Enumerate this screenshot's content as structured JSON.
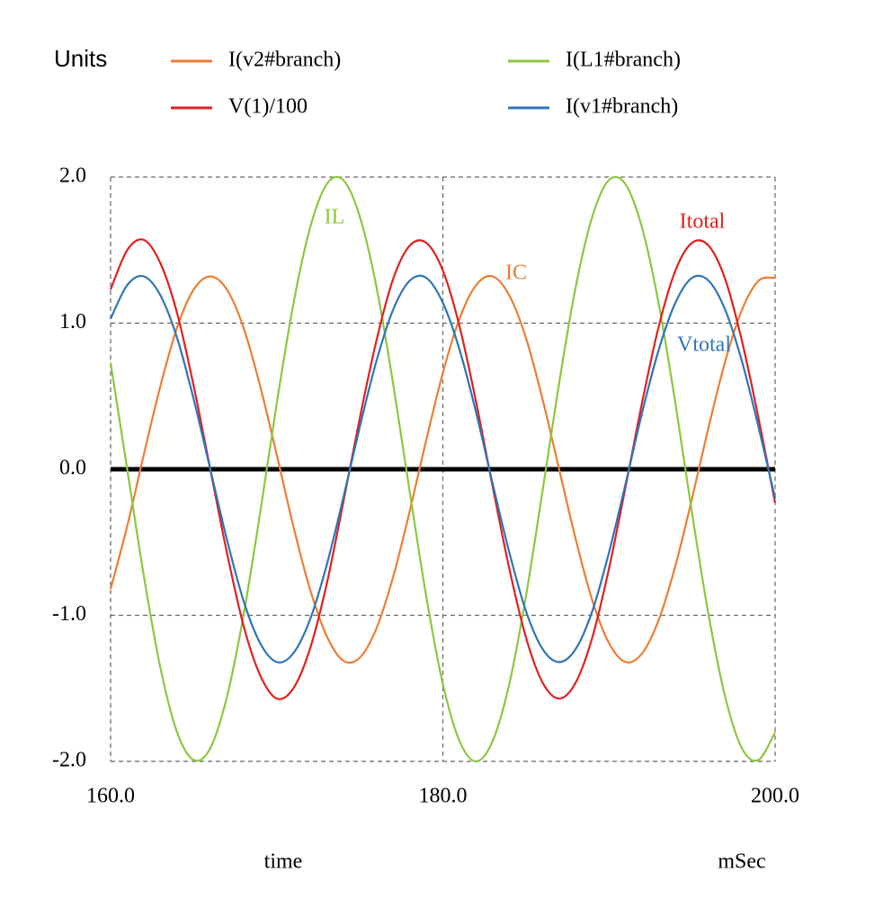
{
  "chart_data": {
    "type": "line",
    "legend_title": "Units",
    "x_label": "time",
    "x_unit": "mSec",
    "x": [
      160,
      161,
      162,
      163,
      164,
      165,
      166,
      167,
      168,
      169,
      170,
      171,
      172,
      173,
      174,
      175,
      176,
      177,
      178,
      179,
      180,
      181,
      182,
      183,
      184,
      185,
      186,
      187,
      188,
      189,
      190,
      191,
      192,
      193,
      194,
      195,
      196,
      197,
      198,
      199,
      200
    ],
    "series": [
      {
        "name": "I(v2#branch)",
        "color": "#ed7d31",
        "values": [
          -0.82,
          -0.39,
          0.1,
          0.57,
          0.97,
          1.23,
          1.32,
          1.23,
          0.97,
          0.57,
          0.1,
          -0.39,
          -0.82,
          -1.14,
          -1.31,
          -1.29,
          -1.09,
          -0.74,
          -0.29,
          0.2,
          0.66,
          1.03,
          1.26,
          1.32,
          1.19,
          0.9,
          0.48,
          0.0,
          -0.48,
          -0.9,
          -1.19,
          -1.32,
          -1.26,
          -1.03,
          -0.66,
          -0.2,
          0.29,
          0.74,
          1.09,
          1.29,
          1.31
        ]
      },
      {
        "name": "I(L1#branch)",
        "color": "#8dc63f",
        "values": [
          0.73,
          0,
          -0.73,
          -1.36,
          -1.8,
          -1.99,
          -1.91,
          -1.56,
          -1.0,
          -0.3,
          0.45,
          1.13,
          1.65,
          1.95,
          1.98,
          1.73,
          1.25,
          0.59,
          -0.15,
          -0.87,
          -1.47,
          -1.86,
          -2.0,
          -1.86,
          -1.47,
          -0.87,
          -0.15,
          0.59,
          1.25,
          1.73,
          1.98,
          1.95,
          1.65,
          1.13,
          0.45,
          -0.3,
          -1.0,
          -1.56,
          -1.91,
          -1.99,
          -1.8
        ]
      },
      {
        "name": "V(1)/100",
        "color": "#e02020",
        "values": [
          1.23,
          1.5,
          1.57,
          1.41,
          1.07,
          0.57,
          0,
          -0.57,
          -1.07,
          -1.41,
          -1.57,
          -1.5,
          -1.23,
          -0.79,
          -0.23,
          0.35,
          0.88,
          1.3,
          1.53,
          1.55,
          1.36,
          0.98,
          0.46,
          -0.12,
          -0.68,
          -1.15,
          -1.46,
          -1.57,
          -1.46,
          -1.15,
          -0.68,
          -0.12,
          0.46,
          0.98,
          1.36,
          1.55,
          1.53,
          1.3,
          0.88,
          0.35,
          -0.23
        ]
      },
      {
        "name": "I(v1#branch)",
        "color": "#2e75b6",
        "values": [
          1.03,
          1.26,
          1.32,
          1.19,
          0.9,
          0.48,
          0,
          -0.48,
          -0.9,
          -1.19,
          -1.32,
          -1.26,
          -1.03,
          -0.66,
          -0.2,
          0.29,
          0.74,
          1.09,
          1.29,
          1.31,
          1.14,
          0.82,
          0.39,
          -0.1,
          -0.57,
          -0.97,
          -1.23,
          -1.32,
          -1.23,
          -0.97,
          -0.57,
          -0.1,
          0.39,
          0.82,
          1.14,
          1.31,
          1.29,
          1.09,
          0.74,
          0.29,
          -0.2
        ]
      }
    ],
    "annotations": [
      {
        "text": "IL",
        "color": "#8dc63f"
      },
      {
        "text": "IC",
        "color": "#ed7d31"
      },
      {
        "text": "Itotal",
        "color": "#e02020"
      },
      {
        "text": "Vtotal",
        "color": "#2e75b6"
      }
    ],
    "xlim": [
      160,
      200
    ],
    "xticks": [
      {
        "value": 160,
        "label": "160.0"
      },
      {
        "value": 180,
        "label": "180.0"
      },
      {
        "value": 200,
        "label": "200.0"
      }
    ],
    "ylim": [
      -2,
      2
    ],
    "yticks": [
      {
        "value": 2,
        "label": "2.0"
      },
      {
        "value": 1,
        "label": "1.0"
      },
      {
        "value": 0,
        "label": "0.0"
      },
      {
        "value": -1,
        "label": "-1.0"
      },
      {
        "value": -2,
        "label": "-2.0"
      }
    ],
    "grid": true
  }
}
